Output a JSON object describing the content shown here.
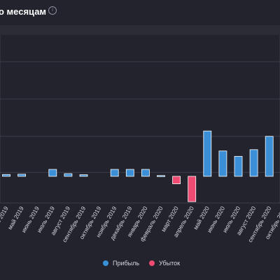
{
  "header": {
    "title": "о месяцам",
    "info_icon": "info-circle-icon"
  },
  "colors": {
    "profit": "#3a8fd6",
    "loss": "#ee4a72",
    "background": "#22232c",
    "grid": "#3a3c48"
  },
  "chart_data": {
    "type": "bar",
    "categories": [
      "апрель 2019",
      "май 2019",
      "июнь 2019",
      "июль 2019",
      "август 2019",
      "сентябрь 2019",
      "октябрь 2019",
      "ноябрь 2019",
      "декабрь 2019",
      "январь 2020",
      "февраль 2020",
      "март 2020",
      "апрель 2020",
      "май 2020",
      "июнь 2020",
      "июль 2020",
      "август 2020",
      "сентябрь 2020",
      "октябрь 2020"
    ],
    "series": [
      {
        "name": "Прибыль",
        "values": [
          0.7,
          0.8,
          0,
          2.6,
          1.0,
          0.6,
          0,
          2.6,
          2.6,
          2.6,
          0.3,
          0,
          0,
          17.0,
          9.5,
          7.5,
          10.0,
          15.0,
          3.0
        ]
      },
      {
        "name": "Убыток",
        "values": [
          0,
          0,
          0,
          0,
          0,
          0,
          0,
          0,
          0,
          0,
          0,
          -2.8,
          -9.5,
          0,
          0,
          0,
          0,
          0,
          0
        ]
      }
    ],
    "ylim": [
      -10,
      53
    ],
    "grid": true,
    "legend": "bottom"
  }
}
